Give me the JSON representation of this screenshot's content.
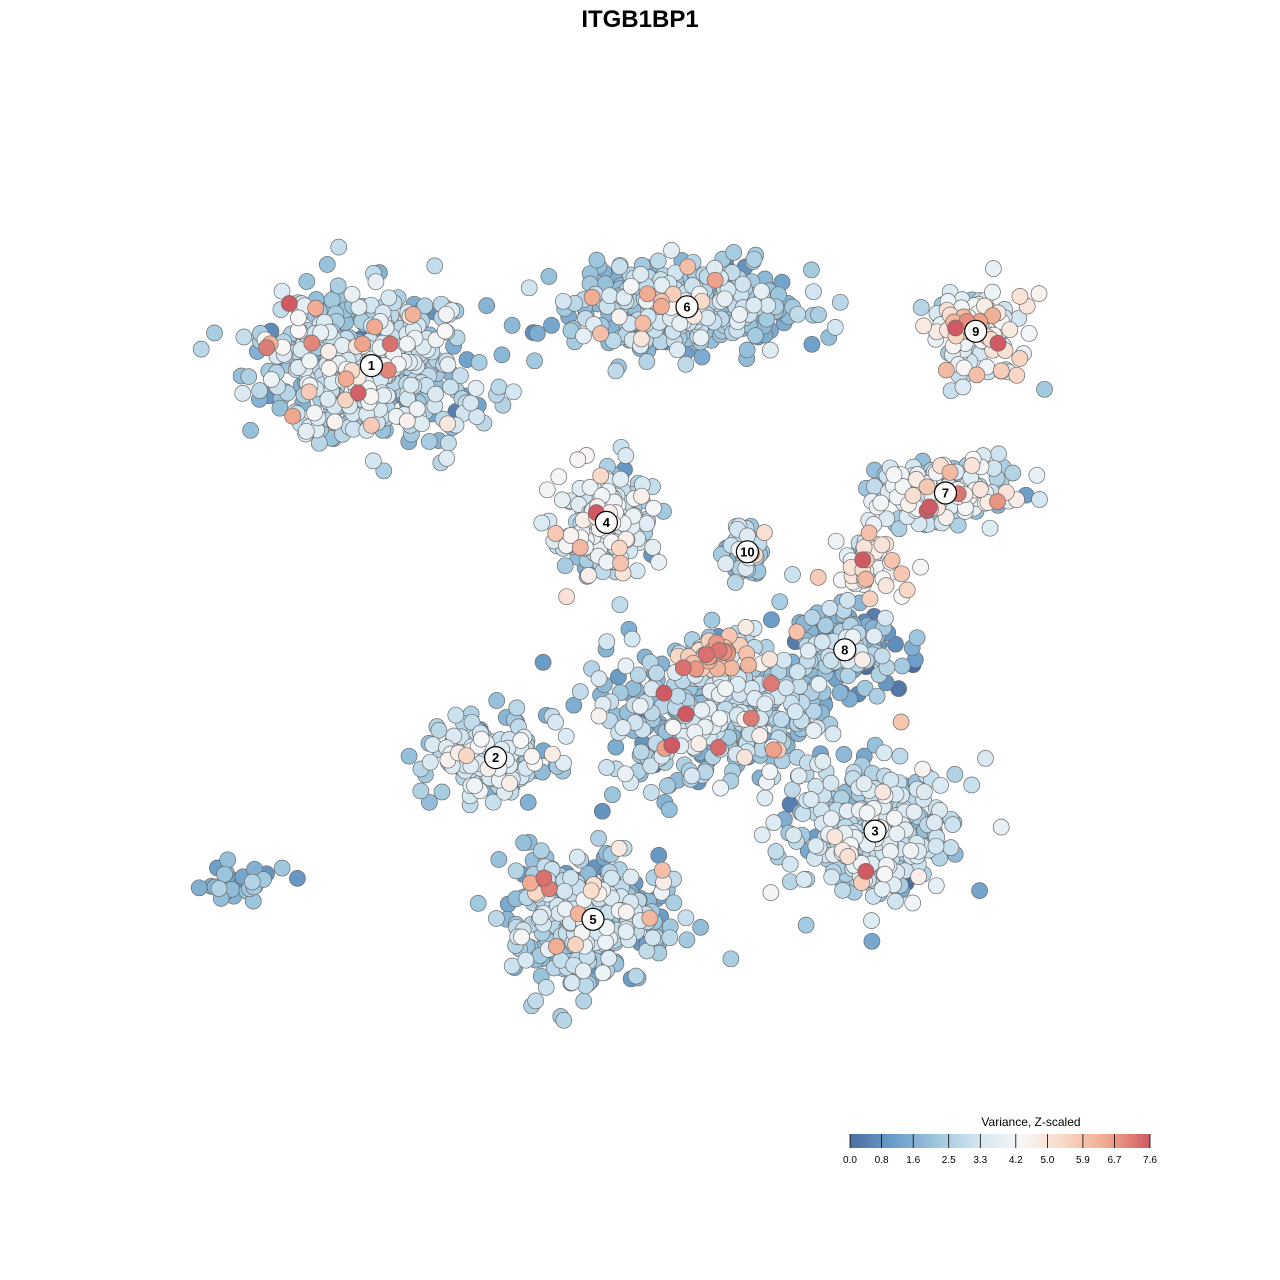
{
  "chart_data": {
    "type": "scatter",
    "title": "ITGB1BP1",
    "xlabel": "",
    "ylabel": "",
    "grid": false,
    "legend": {
      "title": "Variance, Z-scaled",
      "placement": "bottom-right",
      "min": 0.0,
      "max": 7.6,
      "ticks": [
        "0.0",
        "0.8",
        "1.6",
        "2.5",
        "3.3",
        "4.2",
        "5.0",
        "5.9",
        "6.7",
        "7.6"
      ],
      "palette": [
        "#4a6fa0",
        "#6a9cc8",
        "#9cc6de",
        "#d3e6f1",
        "#f7f7f7",
        "#f9d8c6",
        "#f0a88e",
        "#cf5a63"
      ]
    },
    "clusters": [
      {
        "label": "1",
        "x": -8.0,
        "y": 5.6,
        "spread_x": 2.9,
        "spread_y": 1.6,
        "n": 560,
        "mean": 2.6,
        "sd": 0.9
      },
      {
        "label": "2",
        "x": -4.3,
        "y": -2.4,
        "spread_x": 1.8,
        "spread_y": 0.8,
        "n": 170,
        "mean": 2.7,
        "sd": 0.9
      },
      {
        "label": "3",
        "x": 7.0,
        "y": -3.9,
        "spread_x": 2.4,
        "spread_y": 1.3,
        "n": 360,
        "mean": 2.7,
        "sd": 0.8
      },
      {
        "label": "4",
        "x": -1.0,
        "y": 2.4,
        "spread_x": 1.3,
        "spread_y": 1.0,
        "n": 230,
        "mean": 3.0,
        "sd": 0.9
      },
      {
        "label": "5",
        "x": -1.4,
        "y": -5.7,
        "spread_x": 2.2,
        "spread_y": 1.2,
        "n": 440,
        "mean": 2.3,
        "sd": 0.8
      },
      {
        "label": "6",
        "x": 1.4,
        "y": 6.8,
        "spread_x": 3.3,
        "spread_y": 0.9,
        "n": 460,
        "mean": 2.2,
        "sd": 0.7
      },
      {
        "label": "7",
        "x": 9.1,
        "y": 3.0,
        "spread_x": 2.1,
        "spread_y": 0.6,
        "n": 200,
        "mean": 3.1,
        "sd": 0.9
      },
      {
        "label": "8",
        "x": 6.1,
        "y": -0.2,
        "spread_x": 1.3,
        "spread_y": 0.8,
        "n": 170,
        "mean": 2.0,
        "sd": 0.9
      },
      {
        "label": "9",
        "x": 10.0,
        "y": 6.3,
        "spread_x": 1.3,
        "spread_y": 0.9,
        "n": 130,
        "mean": 3.8,
        "sd": 1.1
      },
      {
        "label": "10",
        "x": 3.2,
        "y": 1.8,
        "spread_x": 0.6,
        "spread_y": 0.6,
        "n": 60,
        "mean": 2.3,
        "sd": 0.8
      },
      {
        "label": "",
        "x": 2.3,
        "y": -1.5,
        "spread_x": 3.5,
        "spread_y": 1.5,
        "n": 420,
        "mean": 2.4,
        "sd": 0.9
      },
      {
        "label": "",
        "x": 2.1,
        "y": -0.3,
        "spread_x": 1.0,
        "spread_y": 0.3,
        "n": 40,
        "mean": 5.8,
        "sd": 0.9
      },
      {
        "label": "",
        "x": 6.9,
        "y": 1.6,
        "spread_x": 1.0,
        "spread_y": 0.7,
        "n": 60,
        "mean": 4.3,
        "sd": 0.9
      },
      {
        "label": "",
        "x": -11.8,
        "y": -4.9,
        "spread_x": 1.0,
        "spread_y": 0.4,
        "n": 30,
        "mean": 1.6,
        "sd": 0.6
      }
    ],
    "xlim": [
      -14,
      14
    ],
    "ylim": [
      -10,
      10
    ]
  }
}
